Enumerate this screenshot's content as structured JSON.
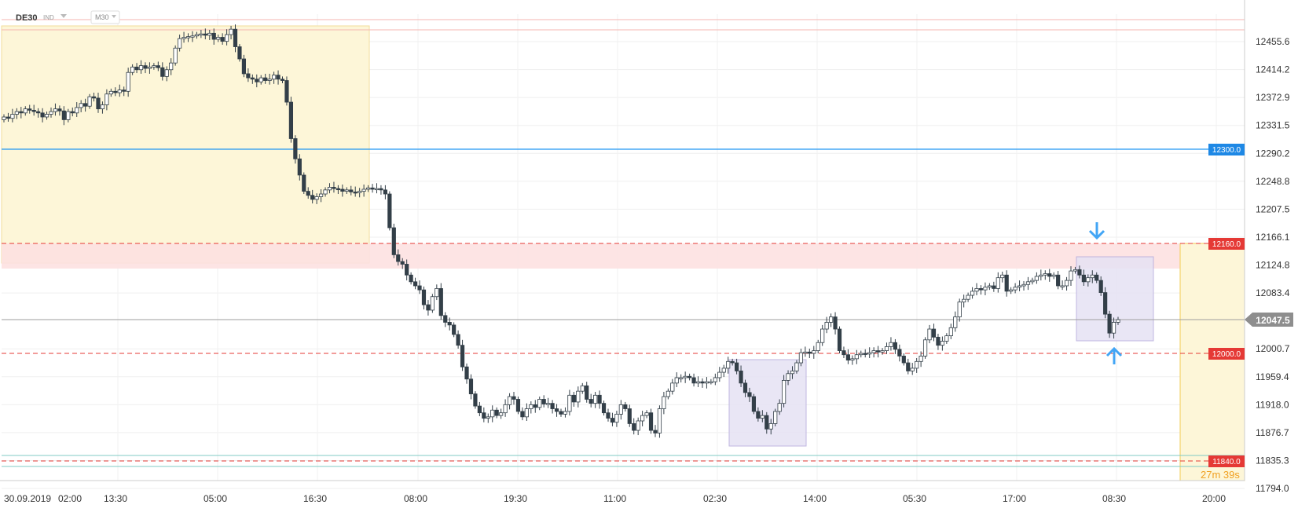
{
  "header": {
    "symbol": "DE30",
    "type": "IND",
    "timeframe": "M30"
  },
  "timer": "27m 39s",
  "colors": {
    "candle": "#333f48",
    "grid": "#eeeeee",
    "zone_yellow": "#fdf6d8",
    "zone_red": "#fde1e1",
    "zone_purple": "#e6e2f4",
    "line_blue": "#2196f3",
    "line_gray": "#9e9e9e",
    "line_red": "#e53935",
    "line_teal": "#80cbc4",
    "arrow_blue": "#42a5f5"
  },
  "chart_data": {
    "type": "candlestick",
    "symbol": "DE30",
    "timeframe": "M30",
    "y_axis": {
      "ticks": [
        "12455.6",
        "12414.2",
        "12372.9",
        "12331.5",
        "12290.2",
        "12248.8",
        "12207.5",
        "12166.1",
        "12124.8",
        "12083.4",
        "12000.7",
        "11959.4",
        "11918.0",
        "11876.7",
        "11835.3",
        "11794.0"
      ],
      "range": [
        11794.0,
        12497.0
      ]
    },
    "x_axis": {
      "ticks": [
        "30.09.2019",
        "02:00",
        "13:30",
        "05:00",
        "16:30",
        "08:00",
        "19:30",
        "11:00",
        "02:30",
        "14:00",
        "05:30",
        "17:00",
        "08:30",
        "20:00"
      ]
    },
    "current_price": "12047.5",
    "levels": [
      {
        "label": "12300.0",
        "value": 12300.0,
        "style": "solid",
        "color": "blue"
      },
      {
        "label": "12160.0",
        "value": 12160.0,
        "style": "dashed",
        "color": "red"
      },
      {
        "label": "12000.0",
        "value": 12000.0,
        "style": "dashed",
        "color": "red"
      },
      {
        "label": "11840.0",
        "value": 11840.0,
        "style": "dashed",
        "color": "red"
      }
    ],
    "close_prices": [
      12344,
      12342,
      12348,
      12352,
      12350,
      12356,
      12354,
      12352,
      12350,
      12344,
      12348,
      12352,
      12356,
      12353,
      12340,
      12352,
      12350,
      12358,
      12364,
      12360,
      12374,
      12372,
      12356,
      12362,
      12378,
      12382,
      12380,
      12384,
      12382,
      12410,
      12418,
      12414,
      12420,
      12416,
      12418,
      12420,
      12417,
      12404,
      12414,
      12424,
      12446,
      12460,
      12462,
      12463,
      12464,
      12466,
      12467,
      12465,
      12468,
      12459,
      12462,
      12456,
      12466,
      12474,
      12448,
      12430,
      12408,
      12402,
      12400,
      12396,
      12402,
      12398,
      12400,
      12406,
      12400,
      12398,
      12366,
      12312,
      12282,
      12258,
      12234,
      12228,
      12222,
      12226,
      12230,
      12236,
      12240,
      12238,
      12237,
      12234,
      12236,
      12233,
      12232,
      12234,
      12237,
      12239,
      12237,
      12238,
      12236,
      12230,
      12180,
      12140,
      12130,
      12126,
      12110,
      12100,
      12094,
      12088,
      12066,
      12058,
      12078,
      12090,
      12050,
      12040,
      12036,
      12022,
      12006,
      11974,
      11956,
      11934,
      11916,
      11906,
      11898,
      11900,
      11910,
      11902,
      11906,
      11918,
      11930,
      11926,
      11908,
      11900,
      11912,
      11918,
      11914,
      11926,
      11919,
      11920,
      11912,
      11908,
      11904,
      11908,
      11932,
      11922,
      11938,
      11946,
      11926,
      11920,
      11932,
      11920,
      11906,
      11898,
      11892,
      11904,
      11918,
      11912,
      11890,
      11880,
      11894,
      11902,
      11906,
      11880,
      11876,
      11912,
      11930,
      11938,
      11950,
      11958,
      11958,
      11960,
      11958,
      11950,
      11952,
      11950,
      11952,
      11952,
      11958,
      11966,
      11972,
      11982,
      11980,
      11968,
      11950,
      11936,
      11930,
      11908,
      11898,
      11902,
      11882,
      11890,
      11908,
      11920,
      11954,
      11964,
      11968,
      11980,
      11995,
      11996,
      11994,
      11998,
      12010,
      12030,
      12040,
      12048,
      12030,
      11998,
      11992,
      11984,
      11986,
      11992,
      11994,
      11993,
      11995,
      11998,
      11996,
      11998,
      12004,
      12010,
      12000,
      11990,
      11980,
      11968,
      11972,
      11982,
      11990,
      12014,
      12030,
      12018,
      12006,
      12012,
      12020,
      12032,
      12048,
      12070,
      12074,
      12080,
      12086,
      12090,
      12088,
      12092,
      12094,
      12090,
      12106,
      12110,
      12086,
      12088,
      12092,
      12094,
      12096,
      12100,
      12102,
      12108,
      12110,
      12112,
      12108,
      12110,
      12094,
      12094,
      12102,
      12116,
      12118,
      12110,
      12100,
      12106,
      12110,
      12102,
      12084,
      12052,
      12024,
      12040,
      12044
    ]
  }
}
